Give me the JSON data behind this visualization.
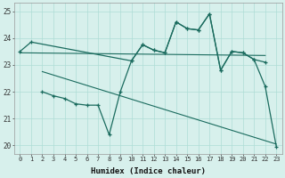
{
  "xlabel": "Humidex (Indice chaleur)",
  "bg_color": "#d7f0ec",
  "line_color": "#1a6b5e",
  "grid_color": "#aeddd6",
  "x_ticks": [
    0,
    1,
    2,
    3,
    4,
    5,
    6,
    7,
    8,
    9,
    10,
    11,
    12,
    13,
    14,
    15,
    16,
    17,
    18,
    19,
    20,
    21,
    22,
    23
  ],
  "ylim": [
    19.7,
    25.3
  ],
  "yticks": [
    20,
    21,
    22,
    23,
    24,
    25
  ],
  "upper_x": [
    0,
    1,
    10,
    11,
    12,
    13,
    14,
    15,
    16,
    17,
    18,
    19,
    20,
    21,
    22
  ],
  "upper_y": [
    23.5,
    23.85,
    23.15,
    23.75,
    23.55,
    23.45,
    24.6,
    24.35,
    24.3,
    24.9,
    22.8,
    23.5,
    23.45,
    23.2,
    23.1
  ],
  "lower_x": [
    2,
    3,
    4,
    5,
    6,
    7,
    8,
    9,
    10,
    11,
    12,
    13,
    14,
    15,
    16,
    17,
    18,
    19,
    20,
    21,
    22,
    23
  ],
  "lower_y": [
    22.0,
    21.85,
    21.75,
    21.55,
    21.5,
    21.5,
    20.4,
    22.0,
    23.15,
    23.75,
    23.55,
    23.45,
    24.6,
    24.35,
    24.3,
    24.9,
    22.8,
    23.5,
    23.45,
    23.2,
    22.2,
    19.95
  ],
  "trend1_x": [
    0,
    22
  ],
  "trend1_y": [
    23.45,
    23.35
  ],
  "trend2_x": [
    2,
    23
  ],
  "trend2_y": [
    22.75,
    20.05
  ]
}
